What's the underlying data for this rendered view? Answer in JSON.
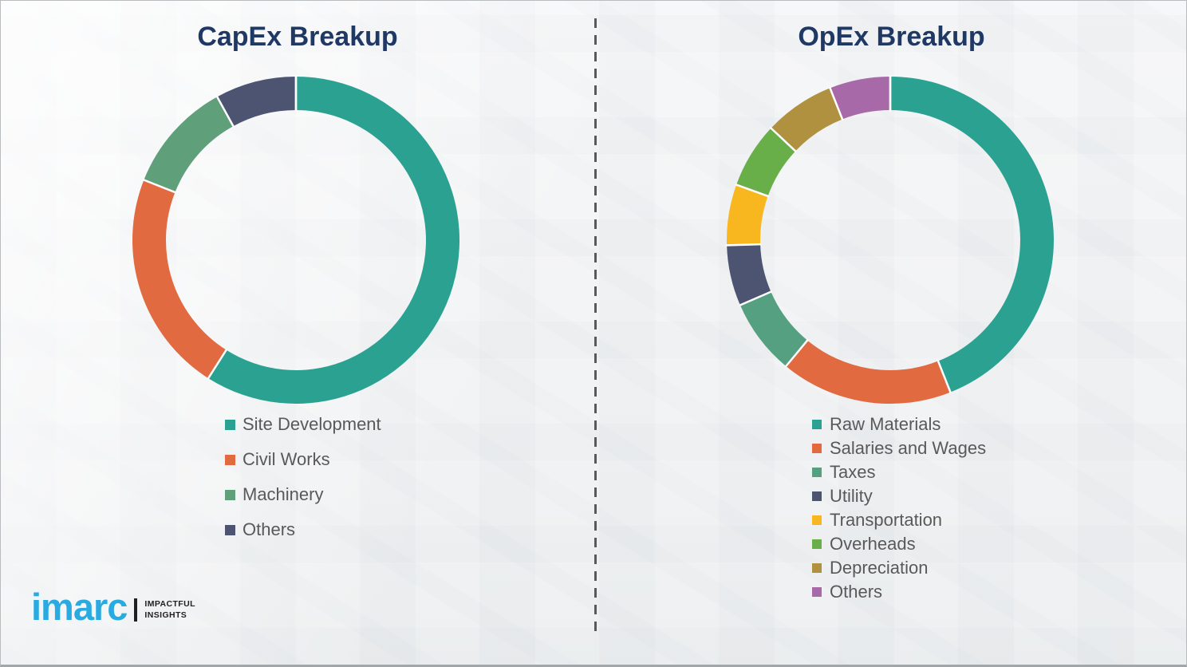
{
  "chart_data": [
    {
      "type": "pie",
      "variant": "donut",
      "title": "CapEx Breakup",
      "labels": [
        "Site Development",
        "Civil Works",
        "Machinery",
        "Others"
      ],
      "values": [
        59,
        22,
        11,
        8
      ],
      "colors": [
        "#2aa191",
        "#e26a40",
        "#5fa07b",
        "#4d5472"
      ],
      "start_angle_deg": 0,
      "direction": "clockwise",
      "legend_position": "below-left",
      "data_labels_shown": false
    },
    {
      "type": "pie",
      "variant": "donut",
      "title": "OpEx Breakup",
      "labels": [
        "Raw Materials",
        "Salaries and Wages",
        "Taxes",
        "Utility",
        "Transportation",
        "Overheads",
        "Depreciation",
        "Others"
      ],
      "values": [
        44,
        17,
        7.5,
        6,
        6,
        6.5,
        7,
        6
      ],
      "colors": [
        "#2aa191",
        "#e26a40",
        "#54a081",
        "#4d5472",
        "#f8b71f",
        "#68af4a",
        "#b0913f",
        "#a769a7"
      ],
      "start_angle_deg": 0,
      "direction": "clockwise",
      "legend_position": "below-left",
      "data_labels_shown": false
    }
  ],
  "divider": {
    "style": "dashed-vertical",
    "color": "#58595b"
  },
  "logo": {
    "brand": "imarc",
    "tagline_line1": "IMPACTFUL",
    "tagline_line2": "INSIGHTS",
    "brand_color": "#29abe2"
  },
  "colors": {
    "title_text": "#1f3864",
    "legend_text": "#595959",
    "background": "#f4f5f6",
    "separator": "#ffffff"
  }
}
